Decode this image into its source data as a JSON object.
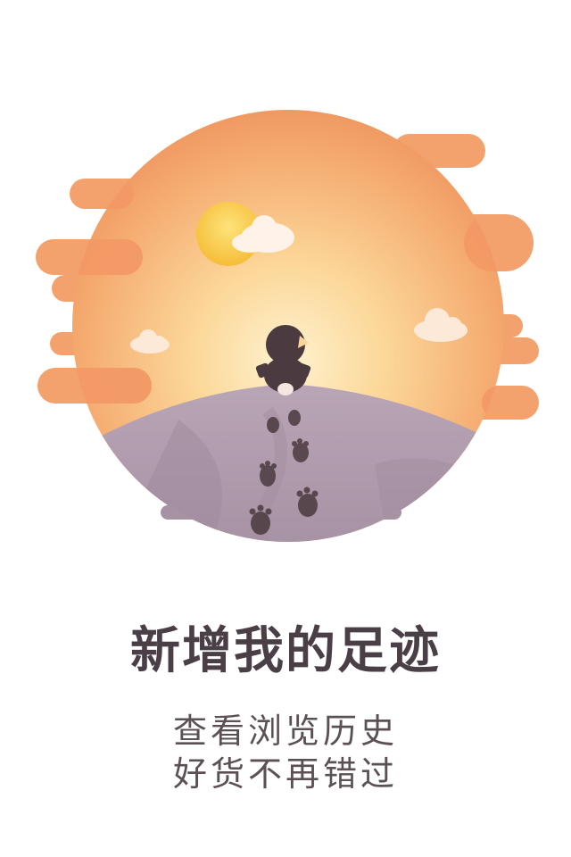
{
  "splash": {
    "title": "新增我的足迹",
    "subtitle_lines": [
      "查看浏览历史",
      "好货不再错过"
    ]
  },
  "illustration": {
    "icons": [
      "sun-icon",
      "cloud-icon",
      "character-icon",
      "footprint-icon"
    ],
    "colors": {
      "sky_top": "#fde5b0",
      "sky_edge": "#ef9a63",
      "hill": "#b5a1b2",
      "hill_shadow": "#9e889b",
      "sun": "#f9cc45",
      "character": "#4b3a3f",
      "cloud": "#fff2e8",
      "band": "#f29965"
    }
  }
}
